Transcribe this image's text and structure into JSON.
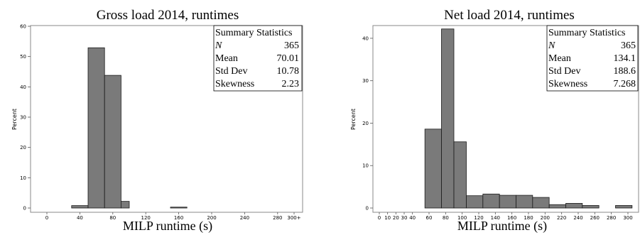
{
  "chart_data": [
    {
      "type": "bar",
      "title": "Gross load 2014, runtimes",
      "xlabel": "MILP runtime (s)",
      "ylabel": "Percent",
      "ylim": [
        0,
        60
      ],
      "xlim": [
        -20,
        310
      ],
      "yticks": [
        "0",
        "10",
        "20",
        "30",
        "40",
        "50",
        "60"
      ],
      "xticks": [
        "0",
        "40",
        "80",
        "120",
        "160",
        "200",
        "240",
        "280",
        "300+"
      ],
      "bin_edges": [
        30,
        50,
        70,
        90,
        100,
        150,
        170
      ],
      "bars": [
        {
          "x0": 30,
          "x1": 50,
          "value": 0.8
        },
        {
          "x0": 50,
          "x1": 70,
          "value": 52.9
        },
        {
          "x0": 70,
          "x1": 90,
          "value": 43.8
        },
        {
          "x0": 90,
          "x1": 100,
          "value": 2.2
        },
        {
          "x0": 150,
          "x1": 170,
          "value": 0.3
        }
      ],
      "stats": {
        "heading": "Summary Statistics",
        "rows": [
          {
            "label": "N",
            "value": "365"
          },
          {
            "label": "Mean",
            "value": "70.01"
          },
          {
            "label": "Std Dev",
            "value": "10.78"
          },
          {
            "label": "Skewness",
            "value": "2.23"
          }
        ]
      }
    },
    {
      "type": "bar",
      "title": "Net load 2014, runtimes",
      "xlabel": "MILP runtime (s)",
      "ylabel": "Percent",
      "ylim": [
        0,
        43
      ],
      "xlim": [
        0,
        305
      ],
      "yticks": [
        "0",
        "10",
        "20",
        "30",
        "40"
      ],
      "xticks": [
        "0",
        "10",
        "20",
        "30",
        "40",
        "60",
        "80",
        "100",
        "120",
        "140",
        "160",
        "180",
        "200",
        "220",
        "240",
        "260",
        "280",
        "300"
      ],
      "bars": [
        {
          "x0": 55,
          "x1": 75,
          "value": 18.6
        },
        {
          "x0": 75,
          "x1": 90,
          "value": 42.2
        },
        {
          "x0": 90,
          "x1": 105,
          "value": 15.6
        },
        {
          "x0": 105,
          "x1": 125,
          "value": 2.9
        },
        {
          "x0": 125,
          "x1": 145,
          "value": 3.3
        },
        {
          "x0": 145,
          "x1": 165,
          "value": 3.0
        },
        {
          "x0": 165,
          "x1": 185,
          "value": 3.0
        },
        {
          "x0": 185,
          "x1": 205,
          "value": 2.5
        },
        {
          "x0": 205,
          "x1": 225,
          "value": 0.8
        },
        {
          "x0": 225,
          "x1": 245,
          "value": 1.1
        },
        {
          "x0": 245,
          "x1": 265,
          "value": 0.6
        },
        {
          "x0": 285,
          "x1": 305,
          "value": 0.6
        }
      ],
      "stats": {
        "heading": "Summary Statistics",
        "rows": [
          {
            "label": "N",
            "value": "365"
          },
          {
            "label": "Mean",
            "value": "134.1"
          },
          {
            "label": "Std Dev",
            "value": "188.6"
          },
          {
            "label": "Skewness",
            "value": "7.268"
          }
        ]
      }
    }
  ]
}
